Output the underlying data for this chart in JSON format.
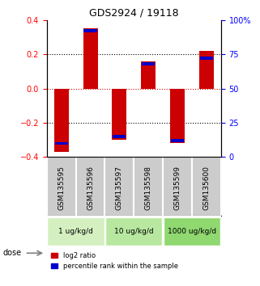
{
  "title": "GDS2924 / 19118",
  "samples": [
    "GSM135595",
    "GSM135596",
    "GSM135597",
    "GSM135598",
    "GSM135599",
    "GSM135600"
  ],
  "log2_ratio": [
    -0.37,
    0.35,
    -0.3,
    0.16,
    -0.32,
    0.22
  ],
  "percentile_rank": [
    10,
    92,
    15,
    68,
    12,
    72
  ],
  "dose_groups": [
    {
      "label": "1 ug/kg/d",
      "samples": [
        0,
        1
      ],
      "color": "#d4f0c0"
    },
    {
      "label": "10 ug/kg/d",
      "samples": [
        2,
        3
      ],
      "color": "#b8e8a0"
    },
    {
      "label": "1000 ug/kg/d",
      "samples": [
        4,
        5
      ],
      "color": "#90d870"
    }
  ],
  "ylim": [
    -0.4,
    0.4
  ],
  "yticks_left": [
    -0.4,
    -0.2,
    0.0,
    0.2,
    0.4
  ],
  "yticks_right": [
    0,
    25,
    50,
    75,
    100
  ],
  "bar_color_red": "#cc0000",
  "bar_color_blue": "#0000cc",
  "bar_width": 0.5,
  "hline_zero_color": "#cc0000",
  "grid_color": "#000000",
  "bg_color": "#ffffff",
  "sample_bg_color": "#cccccc",
  "legend_red_label": "log2 ratio",
  "legend_blue_label": "percentile rank within the sample"
}
